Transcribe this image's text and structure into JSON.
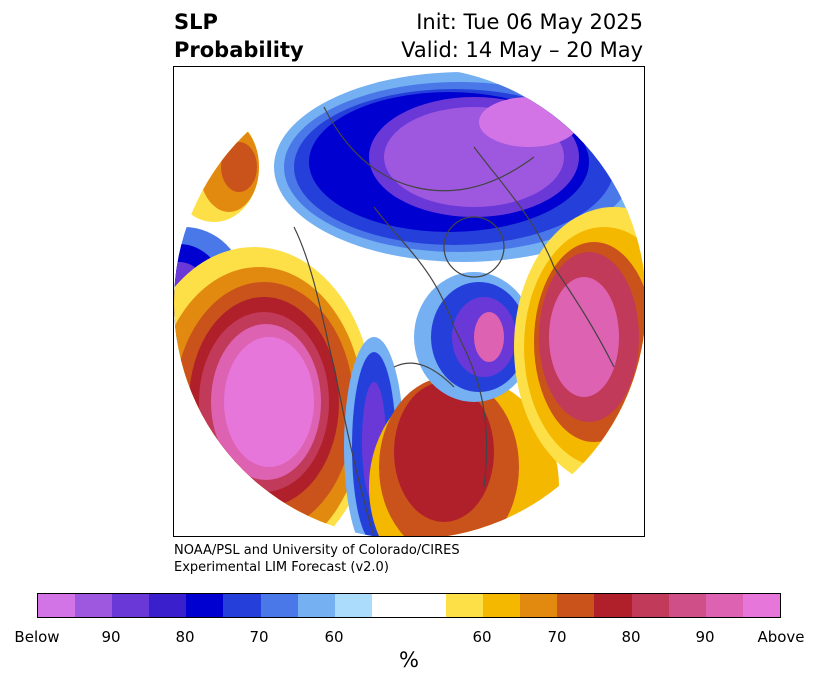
{
  "title": {
    "left_line1": "SLP",
    "left_line2": "Probability",
    "right_line1": "Init: Tue 06 May 2025",
    "right_line2": "Valid: 14 May – 20 May"
  },
  "credit": {
    "line1": "NOAA/PSL and University of Colorado/CIRES",
    "line2": "Experimental LIM Forecast (v2.0)"
  },
  "colorbar": {
    "colors": [
      "#d374e6",
      "#9e58e0",
      "#6b38d8",
      "#3a1fcc",
      "#0000d0",
      "#2540da",
      "#4a78e8",
      "#74b0f2",
      "#acdcfb",
      "#ffffff",
      "#ffffff",
      "#fde047",
      "#f5b800",
      "#e28a10",
      "#c9531a",
      "#b0202a",
      "#c23a5a",
      "#cf4f88",
      "#dd62b2",
      "#e676da"
    ],
    "ticks": [
      "Below",
      "90",
      "80",
      "70",
      "60",
      "60",
      "70",
      "80",
      "90",
      "Above"
    ],
    "units": "%"
  },
  "map": {
    "projection": "north-polar-stereographic",
    "field": "sea level pressure tercile probability"
  }
}
